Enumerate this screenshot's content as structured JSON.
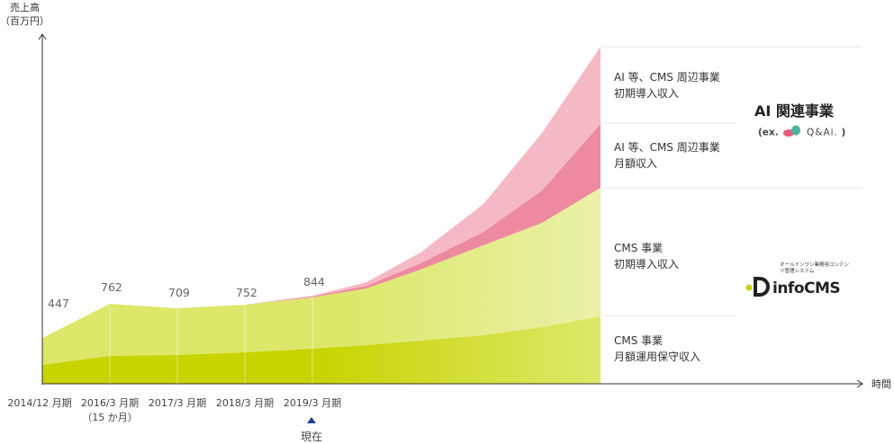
{
  "chart_data": {
    "type": "area",
    "stacked": true,
    "ylabel": "売上高",
    "yunit": "（百万円）",
    "xlabel": "時間",
    "x": [
      "2014/12 月期",
      "2016/3 月期",
      "2017/3 月期",
      "2018/3 月期",
      "2019/3 月期"
    ],
    "x_sublabels": [
      "",
      "（15 か月）",
      "",
      "",
      ""
    ],
    "current_marker": {
      "x_index": 4,
      "label": "現在"
    },
    "data_labels": [
      "447",
      "762",
      "709",
      "752",
      "844"
    ],
    "series": [
      {
        "name": "CMS 事業\n月額運用保守収入",
        "color": "#c8d400"
      },
      {
        "name": "CMS 事業\n初期導入収入",
        "color": "#dde86a"
      },
      {
        "name": "AI 等、CMS 周辺事業\n月額収入",
        "color": "#ee8aa0"
      },
      {
        "name": "AI 等、CMS 周辺事業\n初期導入収入",
        "color": "#f5b9c6"
      }
    ],
    "groups": [
      {
        "label": "AI 関連事業",
        "example": "(ex.",
        "example_product": "Q&Ai.",
        "example_close": ")"
      },
      {
        "label": "infoCMS",
        "tagline": "オールインワン業務用コンテンツ管理システム"
      }
    ],
    "grid": false,
    "legend_position": "right"
  }
}
